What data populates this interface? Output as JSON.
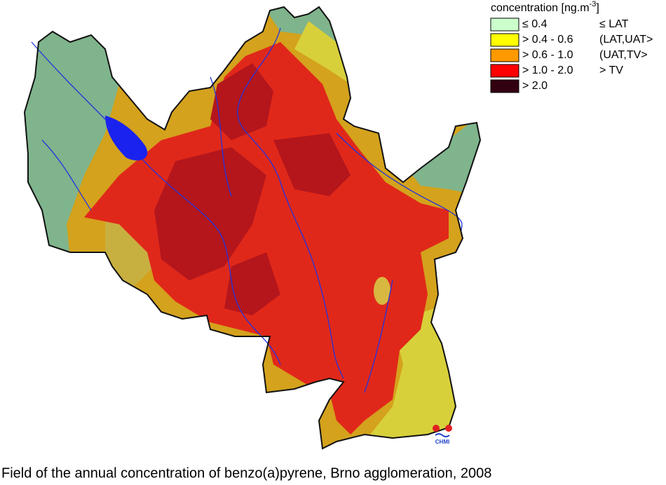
{
  "legend": {
    "title": {
      "text": "concentration [ng.m",
      "superscript": "-3",
      "suffix": "]"
    },
    "items": [
      {
        "range": "≤ 0.4",
        "class": "≤ LAT",
        "color": "#ccffcc"
      },
      {
        "range": "> 0.4 - 0.6",
        "class": "(LAT,UAT>",
        "color": "#ffff00"
      },
      {
        "range": "> 0.6 - 1.0",
        "class": "(UAT,TV>",
        "color": "#ff9900"
      },
      {
        "range": "> 1.0 - 2.0",
        "class": "> TV",
        "color": "#ff0000"
      },
      {
        "range": "> 2.0",
        "color": "#330011"
      }
    ]
  },
  "logo": "CHMI",
  "caption": "Field of the annual concentration of benzo(a)pyrene, Brno agglomeration, 2008"
}
